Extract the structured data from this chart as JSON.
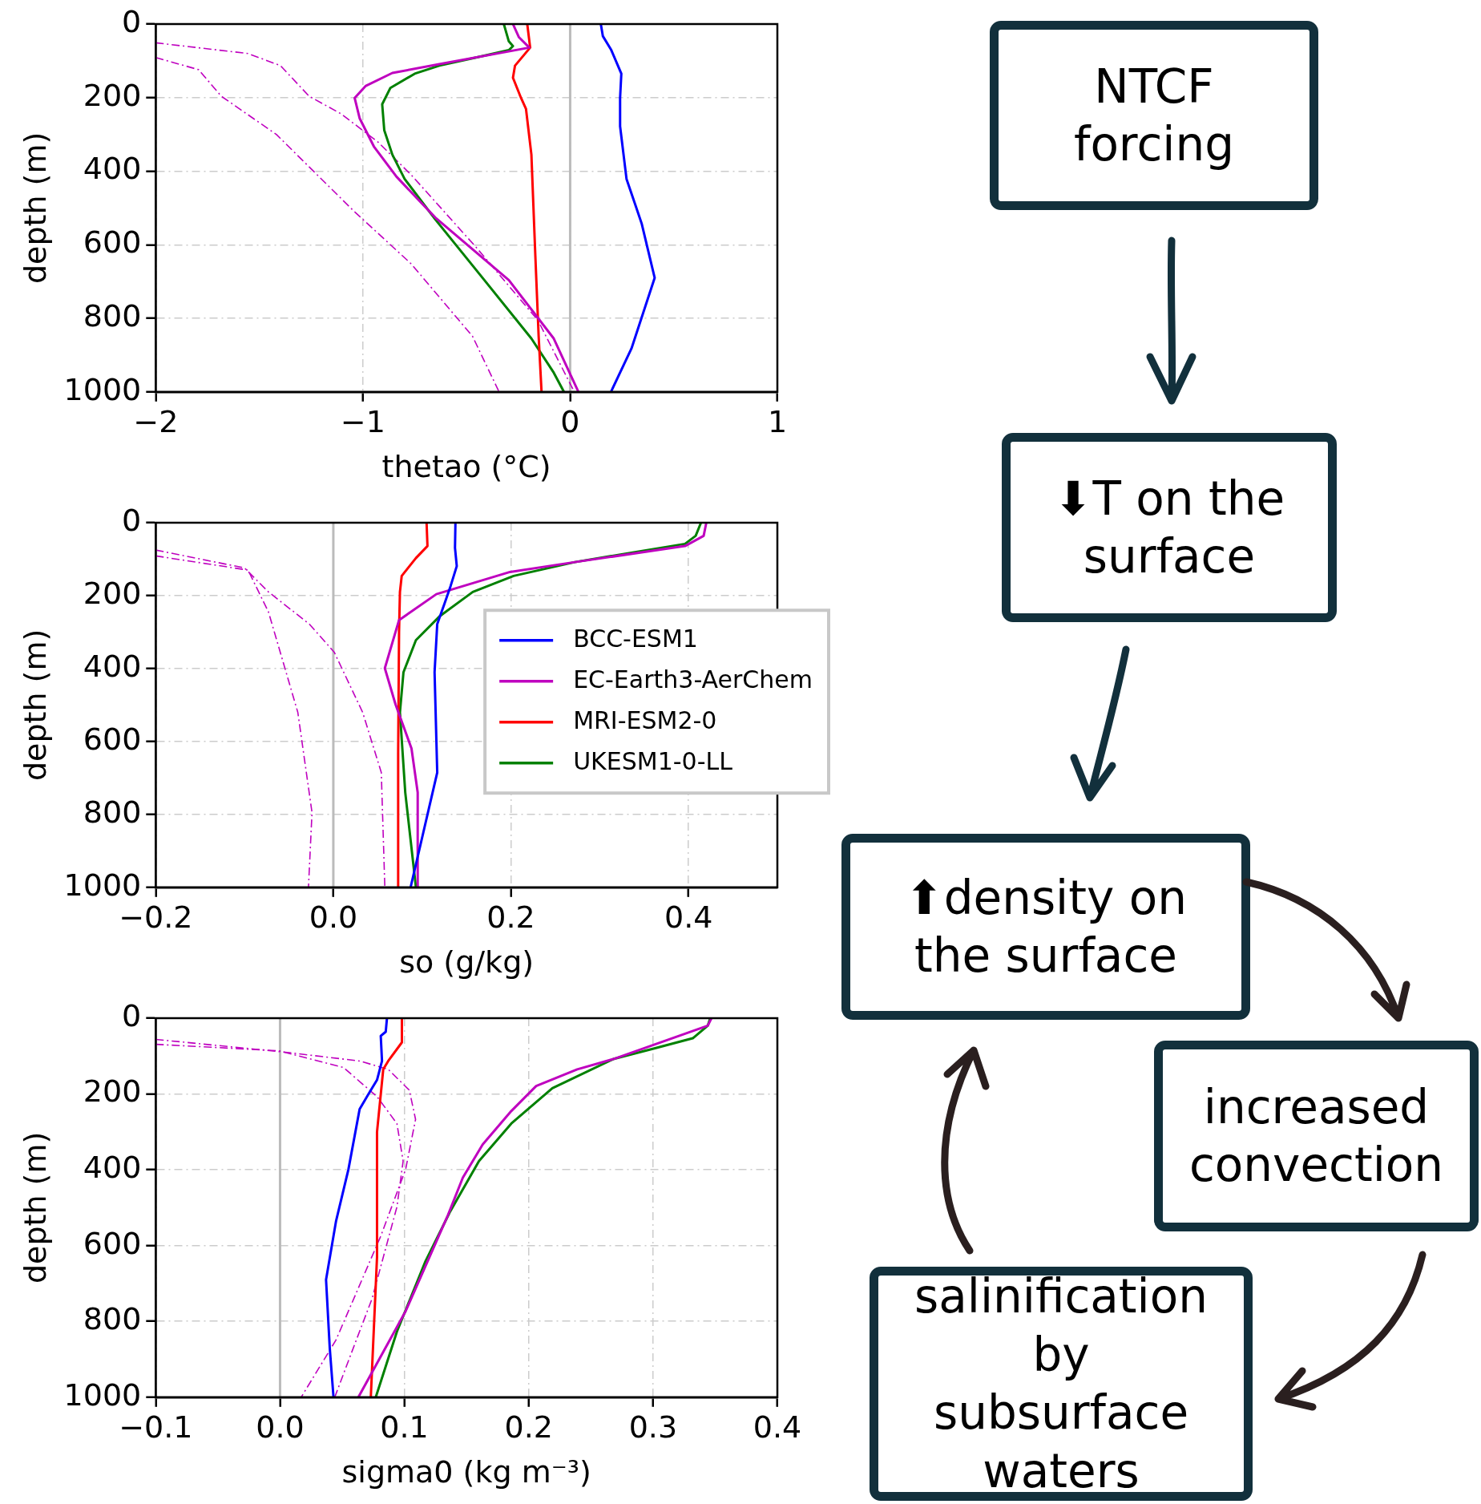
{
  "chart_data": [
    {
      "type": "line",
      "xlabel": "thetao (°C)",
      "ylabel": "depth (m)",
      "xlim": [
        -2,
        1
      ],
      "xticks": [
        {
          "value": -2,
          "label": "−2"
        },
        {
          "value": -1,
          "label": "−1"
        },
        0,
        1
      ],
      "ylim": [
        1000,
        0
      ],
      "yticks": [
        0,
        200,
        400,
        600,
        800,
        1000
      ],
      "grid": true,
      "ref_lines": [
        {
          "axis": "x",
          "value": 0,
          "color": "#bbbbbb"
        }
      ],
      "series": [
        {
          "color": "#0000ff",
          "x": [
            0.148,
            0.158,
            0.197,
            0.247,
            0.241,
            0.241,
            0.272,
            0.345,
            0.408,
            0.296,
            0.197
          ],
          "values": [
            0,
            33,
            69,
            135,
            201,
            278,
            421,
            542,
            690,
            882,
            1000
          ]
        },
        {
          "color": "#bf00bf",
          "x": [
            -0.276,
            -0.247,
            -0.197,
            -0.621,
            -0.858,
            -0.986,
            -1.04,
            -1.016,
            -0.947,
            -0.838,
            -0.651,
            -0.296,
            -0.079,
            0.04
          ],
          "values": [
            0,
            36,
            64,
            108,
            133,
            168,
            201,
            256,
            333,
            415,
            526,
            696,
            855,
            1000
          ]
        },
        {
          "color": "#ff0000",
          "x": [
            -0.207,
            -0.193,
            -0.266,
            -0.276,
            -0.237,
            -0.213,
            -0.187,
            -0.168,
            -0.152,
            -0.138
          ],
          "values": [
            0,
            64,
            113,
            146,
            201,
            231,
            355,
            630,
            849,
            1000
          ]
        },
        {
          "color": "#008000",
          "x": [
            -0.32,
            -0.296,
            -0.276,
            -0.296,
            -0.454,
            -0.631,
            -0.75,
            -0.868,
            -0.907,
            -0.897,
            -0.858,
            -0.799,
            -0.651,
            -0.414,
            -0.187,
            -0.079,
            -0.03
          ],
          "values": [
            0,
            47,
            60,
            71,
            91,
            113,
            135,
            174,
            218,
            289,
            355,
            421,
            531,
            696,
            855,
            948,
            1000
          ]
        },
        {
          "color": "#bf00bf",
          "line_style": "dashed",
          "x": [
            -2,
            -1.556,
            -1.398,
            -1.26,
            -1.103,
            -0.925,
            -0.767,
            -0.452,
            -0.156,
            0.02
          ],
          "values": [
            51,
            80,
            113,
            196,
            245,
            322,
            410,
            608,
            805,
            1000
          ]
        },
        {
          "color": "#bf00bf",
          "line_style": "dashed",
          "x": [
            -2,
            -1.793,
            -1.684,
            -1.418,
            -1.043,
            -0.767,
            -0.471,
            -0.343
          ],
          "values": [
            91,
            124,
            196,
            300,
            509,
            652,
            849,
            1000
          ]
        }
      ]
    },
    {
      "type": "line",
      "xlabel": "so (g/kg)",
      "ylabel": "depth (m)",
      "xlim": [
        -0.2,
        0.5
      ],
      "xticks": [
        {
          "value": -0.2,
          "label": "−0.2"
        },
        {
          "value": 0,
          "label": "0.0"
        },
        0.2,
        0.4
      ],
      "ylim": [
        1000,
        0
      ],
      "yticks": [
        0,
        200,
        400,
        600,
        800,
        1000
      ],
      "grid": true,
      "legend": "right",
      "ref_lines": [
        {
          "axis": "x",
          "value": 0,
          "color": "#bbbbbb"
        }
      ],
      "series": [
        {
          "name": "BCC-ESM1",
          "color": "#0000ff",
          "x": [
            0.1375,
            0.137,
            0.139,
            0.132,
            0.125,
            0.117,
            0.114,
            0.117,
            0.087
          ],
          "values": [
            0,
            69,
            119,
            174,
            223,
            278,
            410,
            685,
            1000
          ]
        },
        {
          "name": "EC-Earth3-AerChem",
          "color": "#bf00bf",
          "x": [
            0.42,
            0.417,
            0.396,
            0.272,
            0.199,
            0.116,
            0.074,
            0.058,
            0.07,
            0.088,
            0.095,
            0.095
          ],
          "values": [
            0,
            36,
            64,
            108,
            135,
            196,
            267,
            399,
            498,
            619,
            740,
            1000
          ]
        },
        {
          "name": "MRI-ESM2-0",
          "color": "#ff0000",
          "x": [
            0.105,
            0.106,
            0.093,
            0.077,
            0.075,
            0.074,
            0.073,
            0.073
          ],
          "values": [
            0,
            64,
            97,
            146,
            190,
            300,
            630,
            1000
          ]
        },
        {
          "name": "UKESM1-0-LL",
          "color": "#008000",
          "x": [
            0.414,
            0.408,
            0.396,
            0.341,
            0.272,
            0.203,
            0.157,
            0.12,
            0.093,
            0.079,
            0.075,
            0.081,
            0.093
          ],
          "values": [
            0,
            36,
            58,
            80,
            108,
            146,
            190,
            256,
            322,
            410,
            520,
            740,
            1000
          ]
        },
        {
          "color": "#bf00bf",
          "line_style": "dashed",
          "x": [
            -0.2,
            -0.1,
            -0.073,
            -0.027,
            0.001,
            0.033,
            0.054,
            0.058
          ],
          "values": [
            75,
            124,
            190,
            278,
            355,
            520,
            685,
            1000
          ]
        },
        {
          "color": "#bf00bf",
          "line_style": "dashed",
          "x": [
            -0.2,
            -0.096,
            -0.073,
            -0.04,
            -0.024,
            -0.028
          ],
          "values": [
            91,
            130,
            245,
            520,
            795,
            1000
          ]
        }
      ]
    },
    {
      "type": "line",
      "xlabel": "sigma0 (kg m⁻³)",
      "ylabel": "depth (m)",
      "xlim": [
        -0.1,
        0.4
      ],
      "xticks": [
        {
          "value": -0.1,
          "label": "−0.1"
        },
        {
          "value": 0,
          "label": "0.0"
        },
        0.1,
        0.2,
        0.3,
        0.4
      ],
      "ylim": [
        1000,
        0
      ],
      "yticks": [
        0,
        200,
        400,
        600,
        800,
        1000
      ],
      "grid": true,
      "ref_lines": [
        {
          "axis": "x",
          "value": 0,
          "color": "#bbbbbb"
        }
      ],
      "series": [
        {
          "color": "#0000ff",
          "x": [
            0.086,
            0.085,
            0.081,
            0.082,
            0.078,
            0.071,
            0.064,
            0.055,
            0.045,
            0.037,
            0.04,
            0.043
          ],
          "values": [
            0,
            36,
            47,
            113,
            163,
            201,
            240,
            399,
            536,
            690,
            871,
            1000
          ]
        },
        {
          "color": "#bf00bf",
          "x": [
            0.347,
            0.344,
            0.268,
            0.239,
            0.206,
            0.186,
            0.163,
            0.147,
            0.135,
            0.101,
            0.063
          ],
          "values": [
            0,
            20,
            108,
            135,
            179,
            245,
            333,
            421,
            520,
            773,
            1000
          ]
        },
        {
          "color": "#ff0000",
          "x": [
            0.098,
            0.098,
            0.087,
            0.083,
            0.081,
            0.078,
            0.078,
            0.073
          ],
          "values": [
            0,
            64,
            113,
            135,
            201,
            300,
            630,
            1000
          ]
        },
        {
          "color": "#008000",
          "x": [
            0.346,
            0.344,
            0.332,
            0.301,
            0.268,
            0.219,
            0.186,
            0.16,
            0.137,
            0.117,
            0.094,
            0.077
          ],
          "values": [
            0,
            20,
            53,
            80,
            108,
            185,
            278,
            377,
            509,
            641,
            827,
            1000
          ]
        },
        {
          "color": "#bf00bf",
          "line_style": "dashed",
          "x": [
            -0.1,
            0.002,
            0.064,
            0.087,
            0.104,
            0.109,
            0.101,
            0.081,
            0.045,
            0.017
          ],
          "values": [
            56,
            89,
            113,
            135,
            190,
            267,
            399,
            575,
            849,
            1000
          ]
        },
        {
          "color": "#bf00bf",
          "line_style": "dashed",
          "x": [
            -0.1,
            -0.001,
            0.051,
            0.078,
            0.094,
            0.099,
            0.094,
            0.074,
            0.055,
            0.044
          ],
          "values": [
            69,
            86,
            130,
            207,
            278,
            377,
            498,
            740,
            904,
            1000
          ]
        }
      ]
    },
    {
      "type": "other",
      "annotations": [
        "NTCF forcing",
        "⬇T on the surface",
        "⬆density on the surface",
        "increased convection",
        "salinification by subsurface waters"
      ]
    }
  ]
}
